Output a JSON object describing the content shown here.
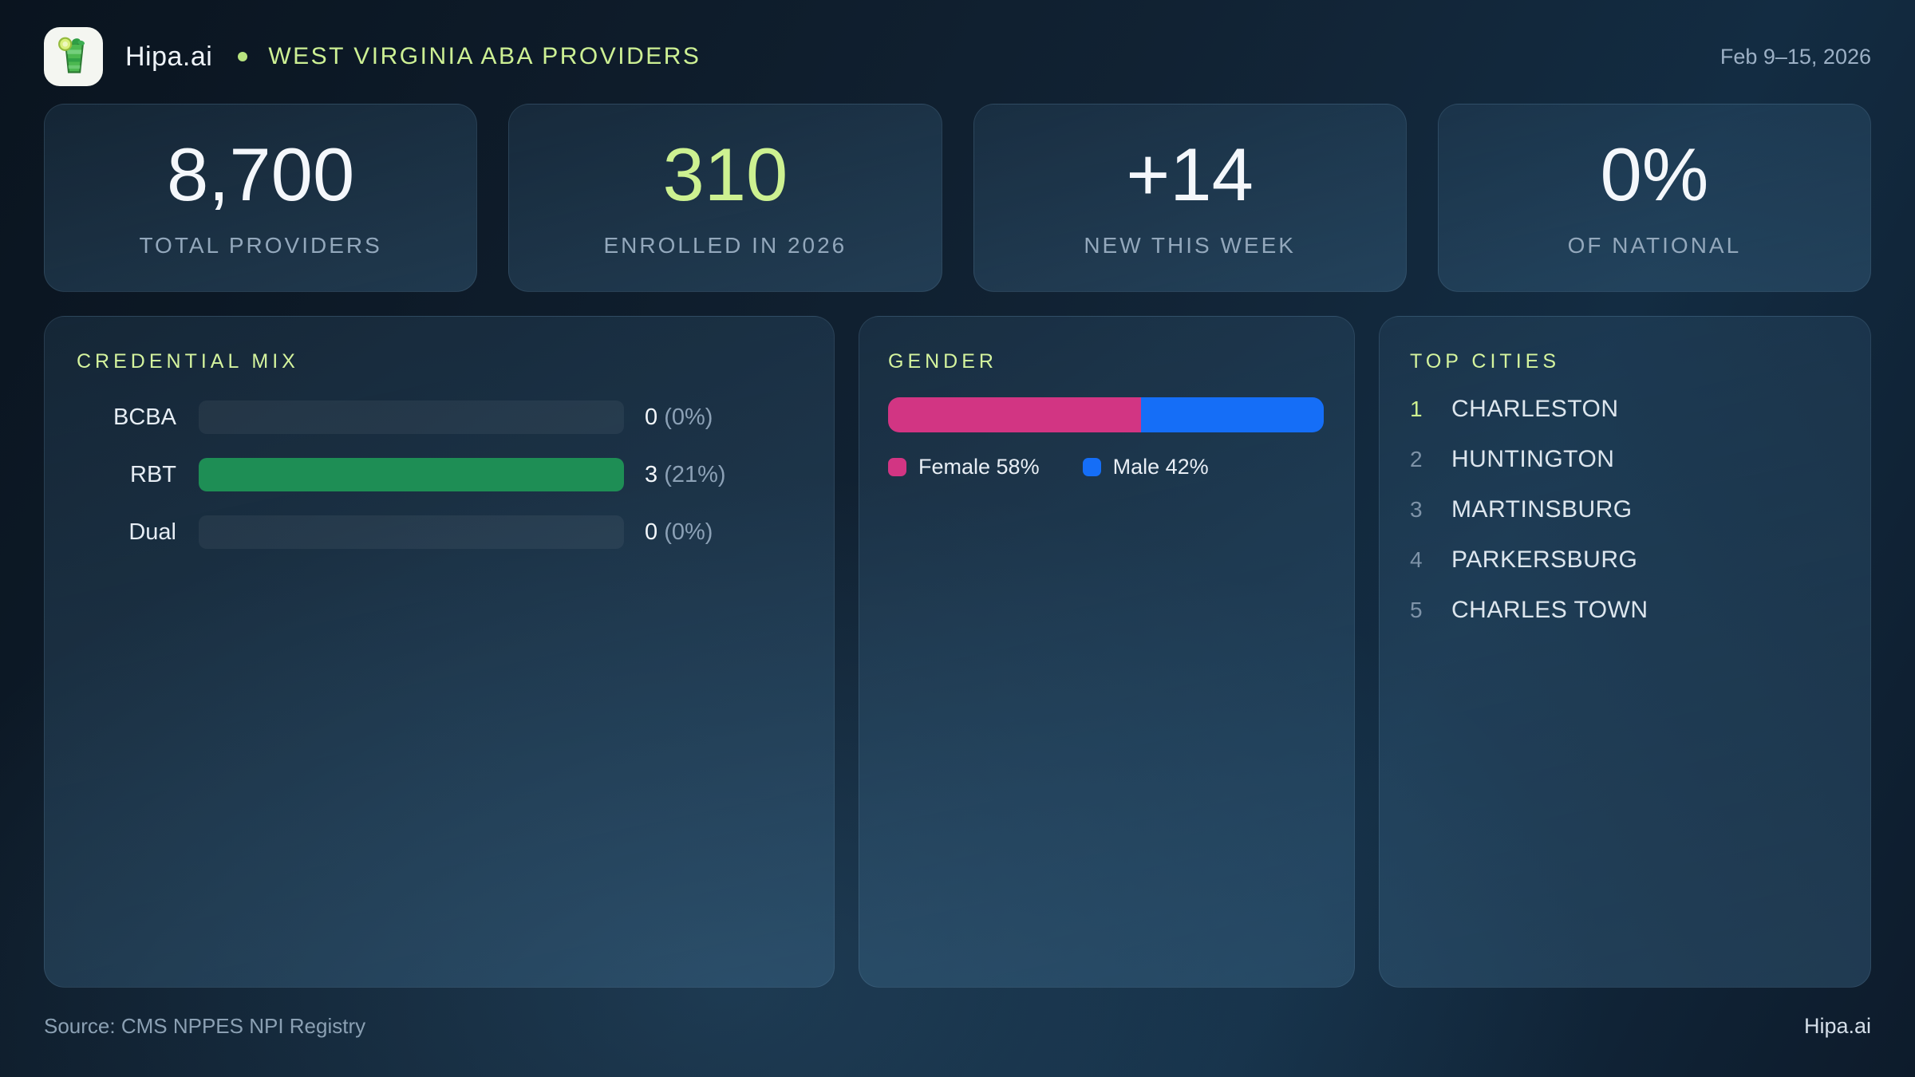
{
  "header": {
    "brand": "Hipa.ai",
    "title": "WEST VIRGINIA ABA PROVIDERS",
    "date_range": "Feb 9–15, 2026"
  },
  "stats": {
    "cards": [
      {
        "value": "8,700",
        "label": "TOTAL PROVIDERS",
        "accent": false
      },
      {
        "value": "310",
        "label": "ENROLLED IN 2026",
        "accent": true
      },
      {
        "value": "+14",
        "label": "NEW THIS WEEK",
        "accent": false
      },
      {
        "value": "0%",
        "label": "OF NATIONAL",
        "accent": false
      }
    ]
  },
  "panels": {
    "credential_mix": {
      "title": "CREDENTIAL MIX",
      "rows": [
        {
          "label": "BCBA",
          "count": "0",
          "pct_text": "(0%)",
          "fill_pct": 0
        },
        {
          "label": "RBT",
          "count": "3",
          "pct_text": "(21%)",
          "fill_pct": 100
        },
        {
          "label": "Dual",
          "count": "0",
          "pct_text": "(0%)",
          "fill_pct": 0
        }
      ]
    },
    "gender": {
      "title": "GENDER",
      "female_pct": 58,
      "male_pct": 42,
      "female_label": "Female 58%",
      "male_label": "Male 42%"
    },
    "top_cities": {
      "title": "TOP CITIES",
      "items": [
        {
          "rank": "1",
          "name": "CHARLESTON"
        },
        {
          "rank": "2",
          "name": "HUNTINGTON"
        },
        {
          "rank": "3",
          "name": "MARTINSBURG"
        },
        {
          "rank": "4",
          "name": "PARKERSBURG"
        },
        {
          "rank": "5",
          "name": "CHARLES TOWN"
        }
      ]
    }
  },
  "footer": {
    "source": "Source: CMS NPPES NPI Registry",
    "brand": "Hipa.ai"
  },
  "colors": {
    "accent_green": "#cdf191",
    "title_green": "#d5f49e",
    "bar_green": "#1e8e55",
    "female_pink": "#d23583",
    "male_blue": "#156ef7"
  },
  "chart_data": [
    {
      "type": "bar",
      "title": "CREDENTIAL MIX",
      "categories": [
        "BCBA",
        "RBT",
        "Dual"
      ],
      "values": [
        0,
        3,
        0
      ],
      "value_labels": [
        "0 (0%)",
        "3 (21%)",
        "0 (0%)"
      ],
      "orientation": "horizontal",
      "bar_color": "#1e8e55"
    },
    {
      "type": "bar",
      "title": "GENDER",
      "subtype": "stacked-horizontal",
      "series": [
        {
          "name": "Female",
          "values": [
            58
          ],
          "color": "#d23583"
        },
        {
          "name": "Male",
          "values": [
            42
          ],
          "color": "#156ef7"
        }
      ],
      "legend_position": "bottom"
    }
  ]
}
